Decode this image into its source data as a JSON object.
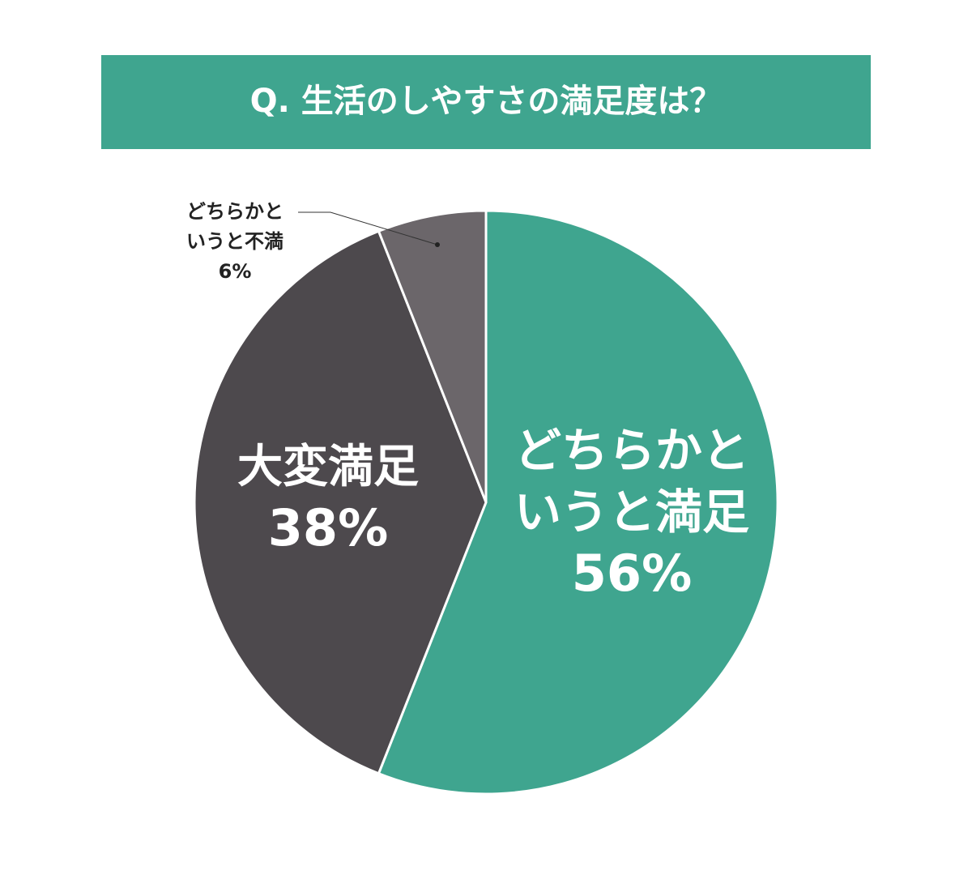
{
  "chart_data": {
    "type": "pie",
    "title": "Q. 生活のしやすさの満足度は？",
    "categories": [
      "どちらかというと満足",
      "大変満足",
      "どちらかというと不満"
    ],
    "values": [
      56,
      38,
      6
    ],
    "value_labels": [
      "56%",
      "38%",
      "6%"
    ],
    "colors": [
      "#3fa58f",
      "#4d494d",
      "#6b666a"
    ]
  }
}
